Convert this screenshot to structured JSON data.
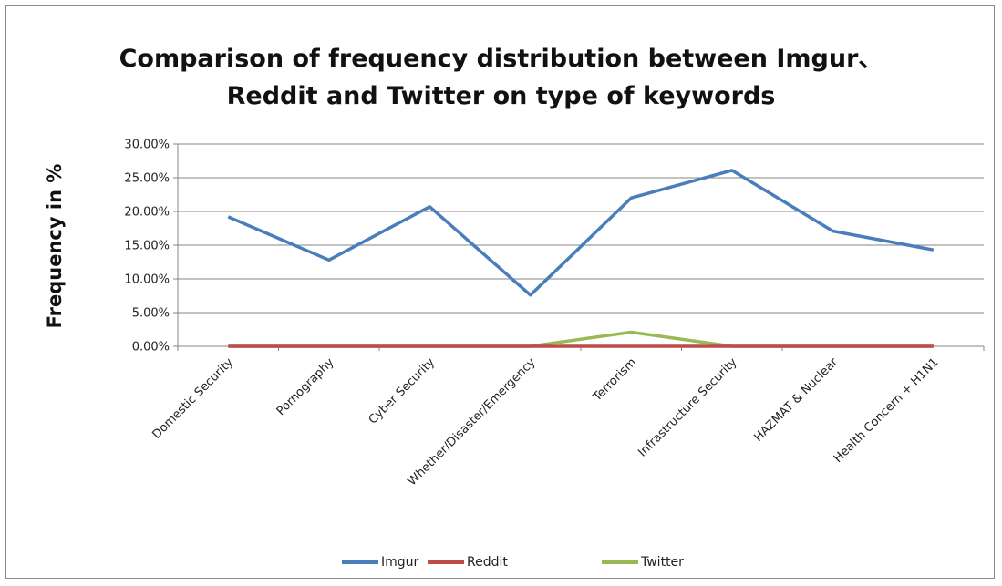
{
  "chart_data": {
    "type": "line",
    "title_lines": [
      "Comparison of frequency distribution between Imgur、",
      "Reddit and Twitter on type of keywords"
    ],
    "xlabel": "",
    "ylabel": "Frequency in %",
    "categories": [
      "Domestic Security",
      "Pornography",
      "Cyber Security",
      "Whether/Disaster/Emergency",
      "Terrorism",
      "Infrastructure Security",
      "HAZMAT & Nuclear",
      "Health Concern + H1N1"
    ],
    "ylim": [
      0,
      0.3
    ],
    "yticks": [
      0,
      0.05,
      0.1,
      0.15,
      0.2,
      0.25,
      0.3
    ],
    "ytick_labels": [
      "0.00%",
      "5.00%",
      "10.00%",
      "15.00%",
      "20.00%",
      "25.00%",
      "30.00%"
    ],
    "grid": true,
    "legend_position": "bottom",
    "series": [
      {
        "name": "Imgur",
        "color": "#4a7ebb",
        "values": [
          0.192,
          0.128,
          0.207,
          0.076,
          0.22,
          0.261,
          0.171,
          0.143
        ]
      },
      {
        "name": "Reddit",
        "color": "#be4b48",
        "values": [
          0,
          0,
          0,
          0,
          0,
          0,
          0,
          0
        ]
      },
      {
        "name": "Twitter",
        "color": "#98b954",
        "values": [
          0,
          0,
          0,
          0,
          0.021,
          0,
          0,
          0
        ]
      }
    ]
  }
}
